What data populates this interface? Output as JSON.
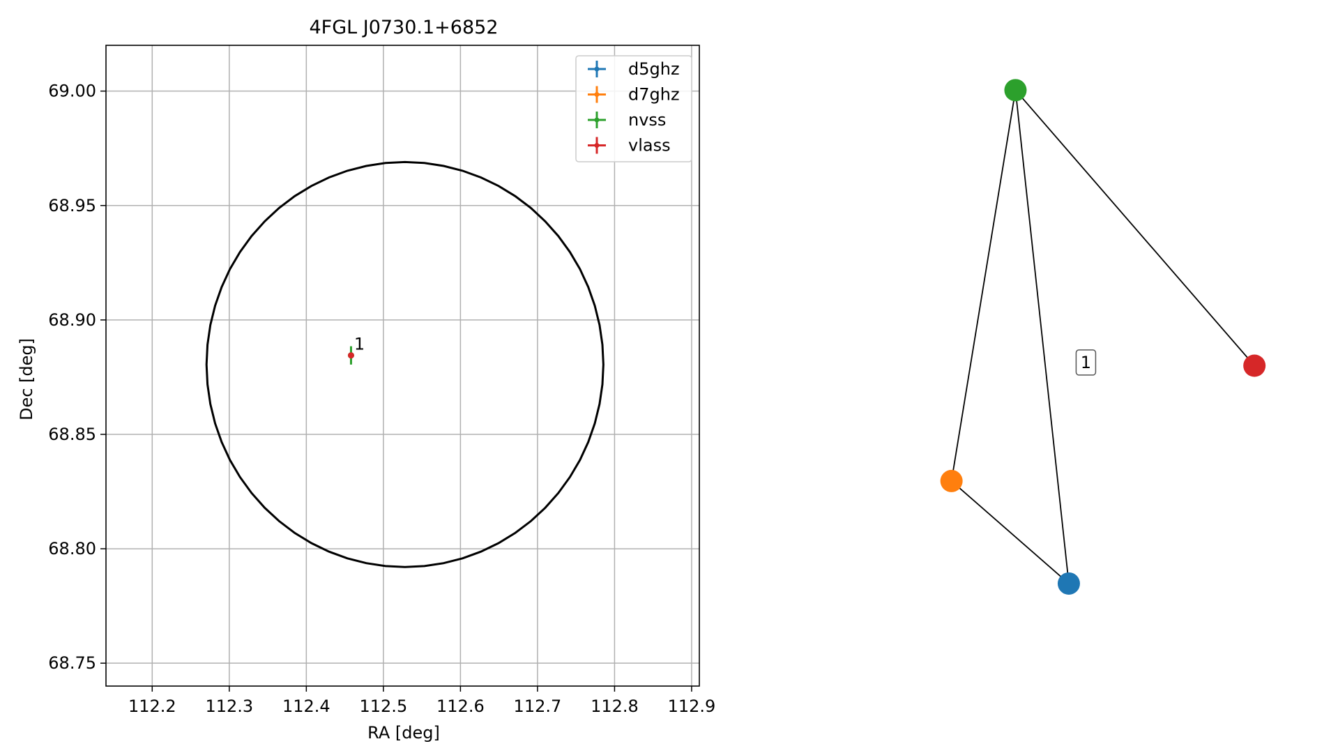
{
  "chart_data": [
    {
      "type": "scatter",
      "title": "4FGL J0730.1+6852",
      "xlabel": "RA [deg]",
      "ylabel": "Dec [deg]",
      "xlim": [
        112.14,
        112.91
      ],
      "ylim": [
        68.74,
        69.02
      ],
      "grid": true,
      "legend_position": "top-right",
      "x_ticks": [
        112.2,
        112.3,
        112.4,
        112.5,
        112.6,
        112.7,
        112.8,
        112.9
      ],
      "x_tick_labels": [
        "112.2",
        "112.3",
        "112.4",
        "112.5",
        "112.6",
        "112.7",
        "112.8",
        "112.9"
      ],
      "y_ticks": [
        68.75,
        68.8,
        68.85,
        68.9,
        68.95,
        69.0
      ],
      "y_tick_labels": [
        "68.75",
        "68.80",
        "68.85",
        "68.90",
        "68.95",
        "69.00"
      ],
      "series": [
        {
          "name": "d5ghz",
          "color": "#1f77b4",
          "points": []
        },
        {
          "name": "d7ghz",
          "color": "#ff7f0e",
          "points": []
        },
        {
          "name": "nvss",
          "color": "#2ca02c",
          "points": [
            {
              "x": 112.458,
              "y": 68.8845,
              "xerr": 0.0008,
              "yerr": 0.004
            }
          ]
        },
        {
          "name": "vlass",
          "color": "#d62728",
          "points": [
            {
              "x": 112.458,
              "y": 68.8845,
              "xerr": 0.0005,
              "yerr": 0.0006
            }
          ]
        }
      ],
      "annotations": [
        {
          "text": "1",
          "x": 112.462,
          "y": 68.887
        }
      ],
      "ellipse": {
        "center_ra": 112.528,
        "center_dec": 68.8805,
        "semi_axis_ra": 0.2575,
        "semi_axis_dec": 0.0885,
        "color": "#000000"
      }
    },
    {
      "type": "network",
      "nodes": [
        {
          "id": "nvss",
          "color": "#2ca02c",
          "x": 0.37,
          "y": 0.93
        },
        {
          "id": "vlass",
          "color": "#d62728",
          "x": 0.93,
          "y": 0.5
        },
        {
          "id": "d7ghz",
          "color": "#ff7f0e",
          "x": 0.22,
          "y": 0.32
        },
        {
          "id": "d5ghz",
          "color": "#1f77b4",
          "x": 0.495,
          "y": 0.16
        }
      ],
      "edges": [
        [
          "nvss",
          "d7ghz"
        ],
        [
          "nvss",
          "d5ghz"
        ],
        [
          "nvss",
          "vlass"
        ],
        [
          "d7ghz",
          "d5ghz"
        ]
      ],
      "label": {
        "text": "1",
        "x": 0.535,
        "y": 0.505
      }
    }
  ]
}
